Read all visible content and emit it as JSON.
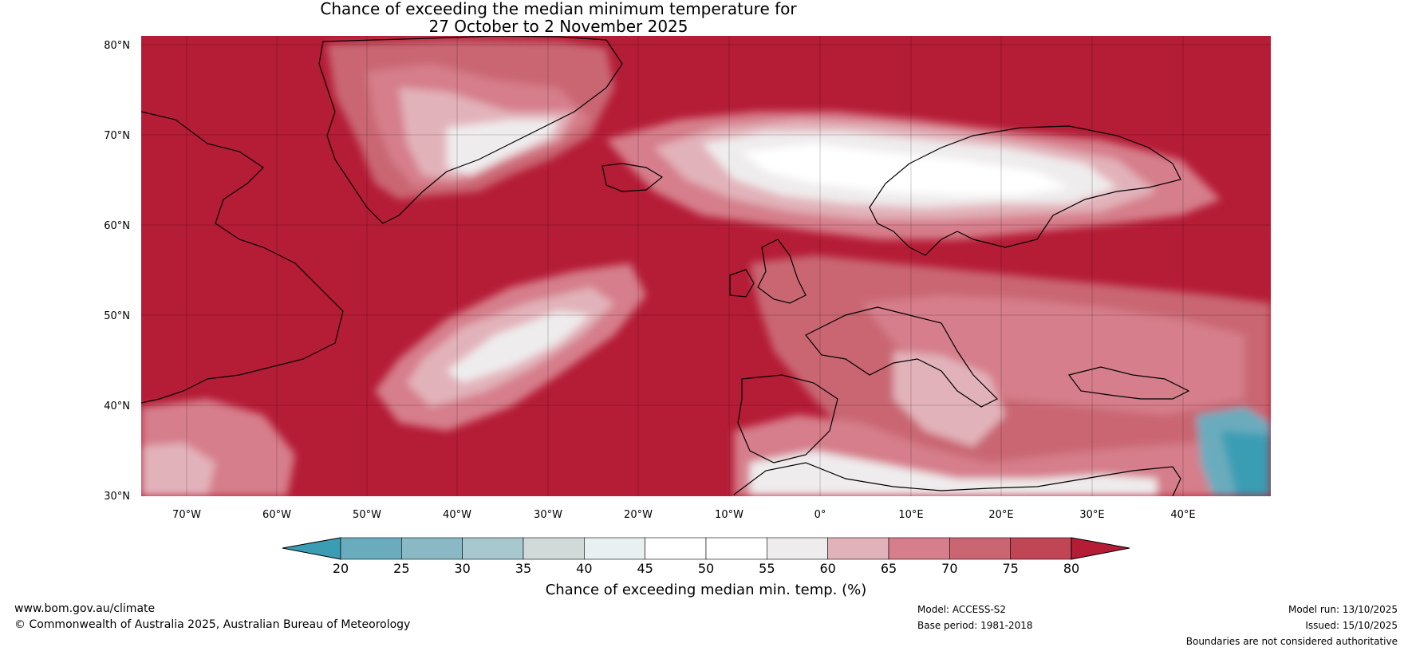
{
  "title": {
    "line1": "Chance of exceeding the median minimum temperature for",
    "line2": "27 October to 2 November 2025"
  },
  "map": {
    "lat_labels": [
      "80°N",
      "70°N",
      "60°N",
      "50°N",
      "40°N",
      "30°N"
    ],
    "lon_labels": [
      "70°W",
      "60°W",
      "50°W",
      "40°W",
      "30°W",
      "20°W",
      "10°W",
      "0°",
      "10°E",
      "20°E",
      "30°E",
      "40°E"
    ]
  },
  "colorbar": {
    "label": "Chance of exceeding median min. temp. (%)",
    "ticks": [
      "20",
      "25",
      "30",
      "35",
      "40",
      "45",
      "50",
      "55",
      "60",
      "65",
      "70",
      "75",
      "80"
    ],
    "colors": [
      "#3a9db3",
      "#6aacbd",
      "#8ab8c5",
      "#a8c8cf",
      "#d1d9d9",
      "#e9f0f2",
      "#ffffff",
      "#ffffff",
      "#efeced",
      "#e2b2ba",
      "#d67e8b",
      "#c96672",
      "#c04656",
      "#b51c36"
    ]
  },
  "footer": {
    "website": "www.bom.gov.au/climate",
    "copyright": "© Commonwealth of Australia 2025, Australian Bureau of Meteorology",
    "model": "Model: ACCESS-S2",
    "base_period": "Base period: 1981-2018",
    "model_run": "Model run: 13/10/2025",
    "issued": "Issued: 15/10/2025",
    "disclaimer": "Boundaries are not considered authoritative"
  }
}
